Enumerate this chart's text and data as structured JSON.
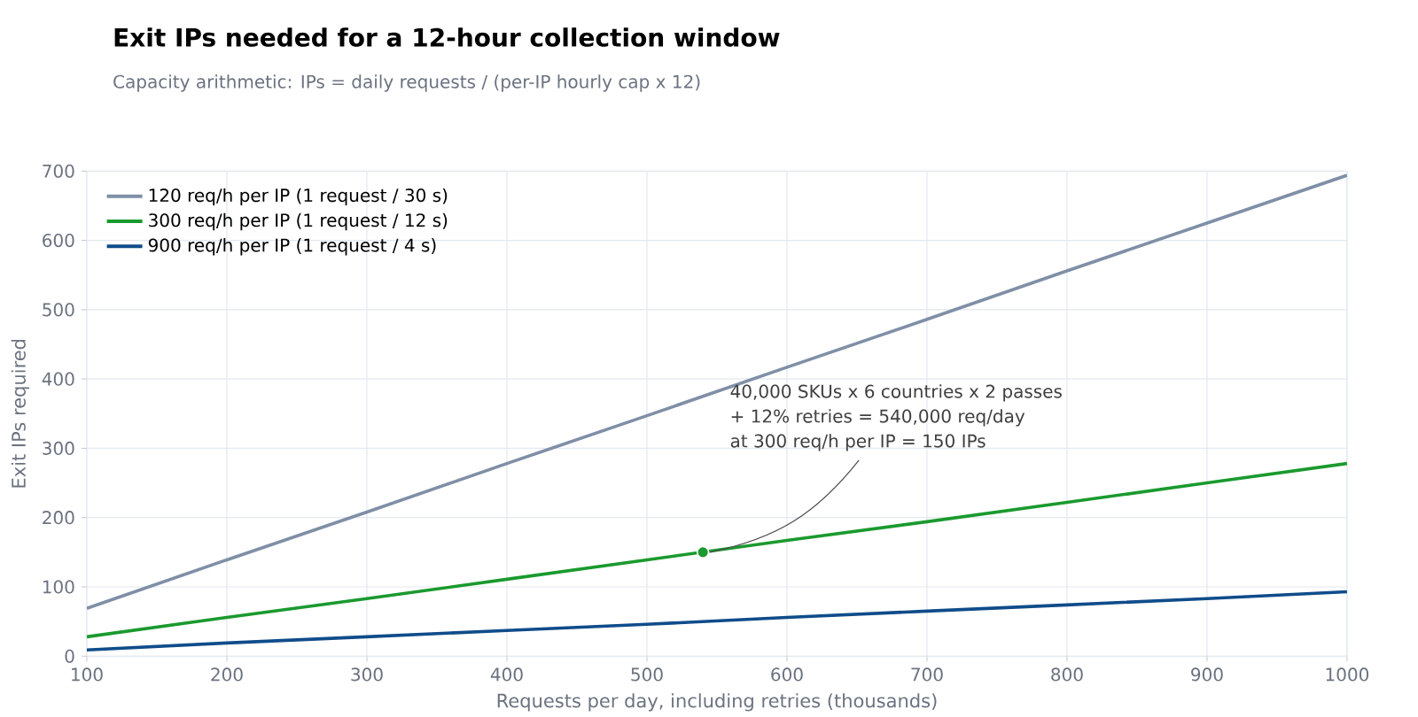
{
  "chart_data": {
    "type": "line",
    "title": "Exit IPs needed for a 12-hour collection window",
    "subtitle": "Capacity arithmetic: IPs = daily requests / (per-IP hourly cap x 12)",
    "xlabel": "Requests per day, including retries (thousands)",
    "ylabel": "Exit IPs required",
    "x": [
      100,
      200,
      300,
      400,
      500,
      600,
      700,
      800,
      900,
      1000
    ],
    "series": [
      {
        "name": "120 req/h per IP  (1 request / 30 s)",
        "color": "#7f8fa6",
        "values": [
          69,
          139,
          208,
          278,
          347,
          417,
          486,
          556,
          625,
          694
        ]
      },
      {
        "name": "300 req/h per IP  (1 request / 12 s)",
        "color": "#1a9a2e",
        "values": [
          28,
          56,
          83,
          111,
          139,
          167,
          194,
          222,
          250,
          278
        ]
      },
      {
        "name": "900 req/h per IP  (1 request / 4 s)",
        "color": "#0f4c8a",
        "values": [
          9,
          19,
          28,
          37,
          46,
          56,
          65,
          74,
          83,
          93
        ]
      },
      {
        "type": "scatter",
        "color": "#1a9a2e",
        "x": [
          540
        ],
        "values": [
          150
        ]
      }
    ],
    "xlim": [
      100,
      1000
    ],
    "ylim": [
      0,
      700
    ],
    "xticks": [
      100,
      200,
      300,
      400,
      500,
      600,
      700,
      800,
      900,
      1000
    ],
    "yticks": [
      0,
      100,
      200,
      300,
      400,
      500,
      600,
      700
    ],
    "grid": true,
    "legend": "top left",
    "line_style": "solid",
    "annotations": [
      "40,000 SKUs x 6 countries x 2 passes",
      "+ 12% retries = 540,000 req/day",
      {
        "text": "at 300 req/h per IP = 150 IPs",
        "x": 540,
        "y": 150
      }
    ]
  }
}
